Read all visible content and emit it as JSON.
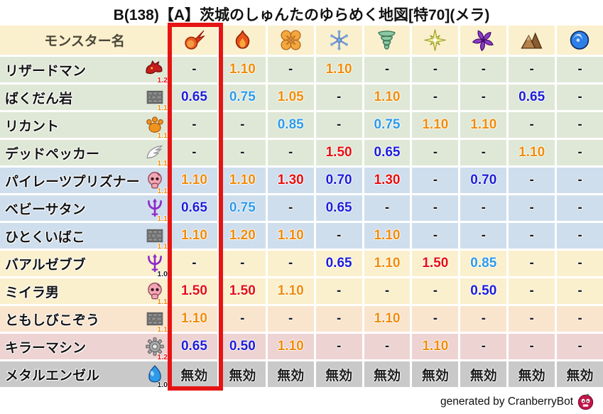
{
  "title": "B(138)【A】茨城のしゅんたのゆらめく地図[特70](メラ)",
  "credit": {
    "text": "generated by CranberryBot",
    "icon": "cranberry-bot-icon"
  },
  "chart_data": {
    "type": "table",
    "title": "B(138)【A】茨城のしゅんたのゆらめく地図[特70](メラ)",
    "name_header": "モンスター名",
    "element_columns": [
      {
        "icon": "meteor-icon"
      },
      {
        "icon": "flame-icon"
      },
      {
        "icon": "burst-icon"
      },
      {
        "icon": "snowflake-icon"
      },
      {
        "icon": "tornado-icon"
      },
      {
        "icon": "sparkle-icon"
      },
      {
        "icon": "pinwheel-icon"
      },
      {
        "icon": "mountain-icon"
      },
      {
        "icon": "wave-icon"
      }
    ],
    "highlighted_column_index": 0,
    "immune_label": "無効",
    "rows": [
      {
        "name": "リザードマン",
        "type_icon": "dragon-icon",
        "rate": "1.2",
        "group": "green",
        "values": [
          "-",
          "1.10",
          "-",
          "1.10",
          "-",
          "-",
          "-",
          "-",
          "-"
        ]
      },
      {
        "name": "ばくだん岩",
        "type_icon": "brick-icon",
        "rate": "1.1",
        "group": "green",
        "values": [
          "0.65",
          "0.75",
          "1.05",
          "-",
          "1.10",
          "-",
          "-",
          "0.65",
          "-"
        ]
      },
      {
        "name": "リカント",
        "type_icon": "paw-icon",
        "rate": "1.1",
        "group": "green",
        "values": [
          "-",
          "-",
          "0.85",
          "-",
          "0.75",
          "1.10",
          "1.10",
          "-",
          "-"
        ]
      },
      {
        "name": "デッドペッカー",
        "type_icon": "wing-icon",
        "rate": "1.1",
        "group": "green",
        "values": [
          "-",
          "-",
          "-",
          "1.50",
          "0.65",
          "-",
          "-",
          "1.10",
          "-"
        ]
      },
      {
        "name": "パイレーツプリズナー",
        "type_icon": "skull-icon",
        "rate": "1.1",
        "group": "blue",
        "values": [
          "1.10",
          "1.10",
          "1.30",
          "0.70",
          "1.30",
          "-",
          "0.70",
          "-",
          "-"
        ]
      },
      {
        "name": "ベビーサタン",
        "type_icon": "trident-icon",
        "rate": "1.1",
        "group": "blue",
        "values": [
          "0.65",
          "0.75",
          "-",
          "0.65",
          "-",
          "-",
          "-",
          "-",
          "-"
        ]
      },
      {
        "name": "ひとくいばこ",
        "type_icon": "brick-icon",
        "rate": "1.1",
        "group": "blue",
        "values": [
          "1.10",
          "1.20",
          "1.10",
          "-",
          "1.10",
          "-",
          "-",
          "-",
          "-"
        ]
      },
      {
        "name": "バアルゼブブ",
        "type_icon": "trident-icon",
        "rate": "1.0",
        "group": "cream",
        "values": [
          "-",
          "-",
          "-",
          "0.65",
          "1.10",
          "1.50",
          "0.85",
          "-",
          "-"
        ]
      },
      {
        "name": "ミイラ男",
        "type_icon": "skull-icon",
        "rate": "1.1",
        "group": "cream",
        "values": [
          "1.50",
          "1.50",
          "1.10",
          "-",
          "-",
          "-",
          "0.50",
          "-",
          "-"
        ]
      },
      {
        "name": "ともしびこぞう",
        "type_icon": "brick-icon",
        "rate": "1.1",
        "group": "peach",
        "values": [
          "1.10",
          "-",
          "-",
          "-",
          "1.10",
          "-",
          "-",
          "-",
          "-"
        ]
      },
      {
        "name": "キラーマシン",
        "type_icon": "gear-icon",
        "rate": "1.2",
        "group": "pink",
        "values": [
          "0.65",
          "0.50",
          "1.10",
          "-",
          "-",
          "1.10",
          "-",
          "-",
          "-"
        ]
      },
      {
        "name": "メタルエンゼル",
        "type_icon": "slime-icon",
        "rate": "1.0",
        "group": "gray",
        "values": [
          "無効",
          "無効",
          "無効",
          "無効",
          "無効",
          "無効",
          "無効",
          "無効",
          "無効"
        ]
      }
    ]
  },
  "colors": {
    "header_bg": "#fbf0cd",
    "group_green": "#dfe8d6",
    "group_blue": "#cfdeed",
    "group_cream": "#fbf0cd",
    "group_peach": "#f9e4cd",
    "group_pink": "#eed3d3",
    "group_gray": "#c9c9c9",
    "highlight_border": "#e61414",
    "value_strong_up": "#e60f0f",
    "value_up": "#f08c0a",
    "value_down": "#2d9ae8",
    "value_strong_down": "#1d1dd8",
    "value_neutral": "#1b1b1b"
  }
}
